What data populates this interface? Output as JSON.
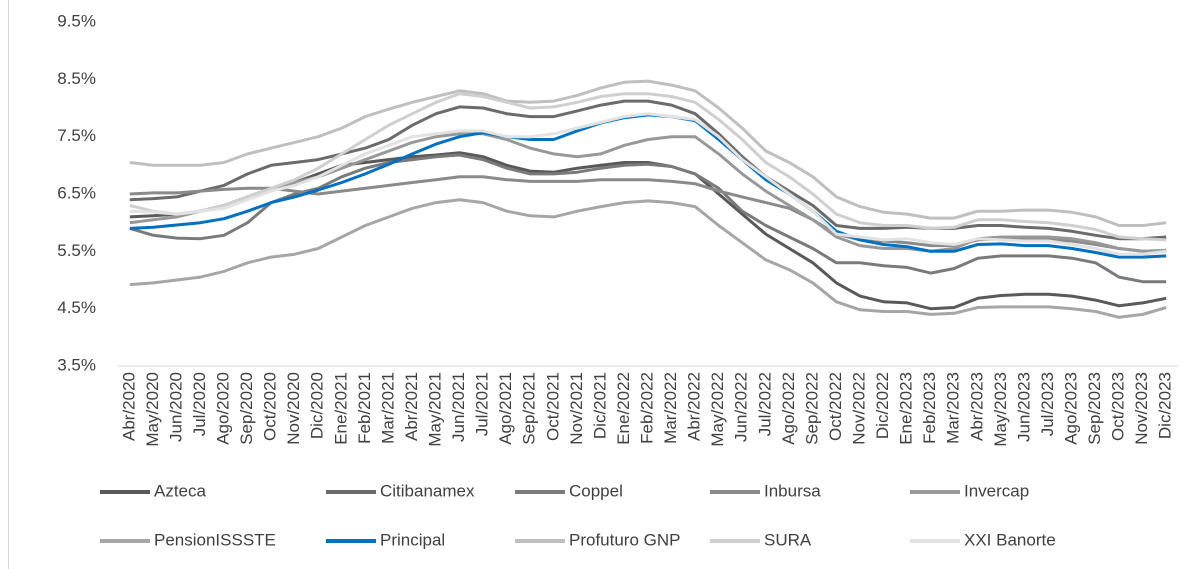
{
  "chart_data": {
    "type": "line",
    "categories": [
      "Abr/2020",
      "May/2020",
      "Jun/2020",
      "Jul/2020",
      "Ago/2020",
      "Sep/2020",
      "Oct/2020",
      "Nov/2020",
      "Dic/2020",
      "Ene/2021",
      "Feb/2021",
      "Mar/2021",
      "Abr/2021",
      "May/2021",
      "Jun/2021",
      "Jul/2021",
      "Ago/2021",
      "Sep/2021",
      "Oct/2021",
      "Nov/2021",
      "Dic/2021",
      "Ene/2022",
      "Feb/2022",
      "Mar/2022",
      "Abr/2022",
      "May/2022",
      "Jun/2022",
      "Jul/2022",
      "Ago/2022",
      "Sep/2022",
      "Oct/2022",
      "Nov/2022",
      "Dic/2022",
      "Ene/2023",
      "Feb/2023",
      "Mar/2023",
      "Abr/2023",
      "May/2023",
      "Jun/2023",
      "Jul/2023",
      "Ago/2023",
      "Sep/2023",
      "Oct/2023",
      "Nov/2023",
      "Dic/2023"
    ],
    "ylim": [
      3.5,
      9.5
    ],
    "yticks": [
      {
        "value": 3.5,
        "label": "3.5%"
      },
      {
        "value": 4.5,
        "label": "4.5%"
      },
      {
        "value": 5.5,
        "label": "5.5%"
      },
      {
        "value": 6.5,
        "label": "6.5%"
      },
      {
        "value": 7.5,
        "label": "7.5%"
      },
      {
        "value": 8.5,
        "label": "8.5%"
      },
      {
        "value": 9.5,
        "label": "9.5%"
      }
    ],
    "series": [
      {
        "name": "Azteca",
        "color": "#595959",
        "values": [
          6.1,
          6.12,
          6.15,
          6.2,
          6.3,
          6.45,
          6.6,
          6.7,
          6.85,
          7.0,
          7.05,
          7.1,
          7.15,
          7.18,
          7.22,
          7.15,
          7.0,
          6.9,
          6.88,
          6.95,
          7.0,
          7.05,
          7.05,
          6.98,
          6.85,
          6.5,
          6.15,
          5.8,
          5.55,
          5.3,
          4.95,
          4.72,
          4.62,
          4.6,
          4.5,
          4.52,
          4.68,
          4.73,
          4.75,
          4.75,
          4.72,
          4.65,
          4.55,
          4.6,
          4.68
        ]
      },
      {
        "name": "Citibanamex",
        "color": "#6b6b6b",
        "values": [
          6.4,
          6.42,
          6.45,
          6.55,
          6.65,
          6.85,
          7.0,
          7.05,
          7.1,
          7.2,
          7.3,
          7.45,
          7.7,
          7.9,
          8.02,
          8.0,
          7.9,
          7.85,
          7.85,
          7.95,
          8.05,
          8.12,
          8.12,
          8.05,
          7.9,
          7.55,
          7.15,
          6.8,
          6.55,
          6.3,
          5.95,
          5.9,
          5.9,
          5.92,
          5.9,
          5.9,
          5.95,
          5.95,
          5.92,
          5.9,
          5.85,
          5.78,
          5.72,
          5.72,
          5.75
        ]
      },
      {
        "name": "Coppel",
        "color": "#7a7a7a",
        "values": [
          5.9,
          5.78,
          5.73,
          5.72,
          5.78,
          6.0,
          6.35,
          6.5,
          6.6,
          6.8,
          6.95,
          7.05,
          7.1,
          7.15,
          7.18,
          7.1,
          6.95,
          6.85,
          6.85,
          6.88,
          6.95,
          7.0,
          7.02,
          6.98,
          6.85,
          6.6,
          6.2,
          5.95,
          5.75,
          5.55,
          5.3,
          5.3,
          5.25,
          5.22,
          5.12,
          5.2,
          5.38,
          5.42,
          5.42,
          5.42,
          5.38,
          5.3,
          5.05,
          4.97,
          4.97
        ]
      },
      {
        "name": "Inbursa",
        "color": "#8a8a8a",
        "values": [
          6.5,
          6.52,
          6.52,
          6.55,
          6.58,
          6.6,
          6.6,
          6.55,
          6.5,
          6.55,
          6.6,
          6.65,
          6.7,
          6.75,
          6.8,
          6.8,
          6.75,
          6.72,
          6.72,
          6.72,
          6.75,
          6.75,
          6.75,
          6.72,
          6.68,
          6.55,
          6.45,
          6.35,
          6.25,
          6.05,
          5.8,
          5.7,
          5.68,
          5.65,
          5.6,
          5.6,
          5.7,
          5.72,
          5.72,
          5.7,
          5.68,
          5.62,
          5.55,
          5.5,
          5.5
        ]
      },
      {
        "name": "Invercap",
        "color": "#989898",
        "values": [
          6.0,
          6.05,
          6.1,
          6.2,
          6.3,
          6.45,
          6.6,
          6.7,
          6.8,
          6.95,
          7.1,
          7.25,
          7.4,
          7.5,
          7.55,
          7.55,
          7.45,
          7.3,
          7.2,
          7.15,
          7.2,
          7.35,
          7.45,
          7.5,
          7.5,
          7.2,
          6.85,
          6.55,
          6.3,
          6.05,
          5.75,
          5.6,
          5.55,
          5.55,
          5.5,
          5.55,
          5.72,
          5.75,
          5.75,
          5.75,
          5.72,
          5.65,
          5.55,
          5.5,
          5.52
        ]
      },
      {
        "name": "PensionISSSTE",
        "color": "#a6a6a6",
        "values": [
          4.92,
          4.95,
          5.0,
          5.05,
          5.15,
          5.3,
          5.4,
          5.45,
          5.55,
          5.75,
          5.95,
          6.1,
          6.25,
          6.35,
          6.4,
          6.35,
          6.2,
          6.12,
          6.1,
          6.2,
          6.28,
          6.35,
          6.38,
          6.35,
          6.28,
          5.95,
          5.65,
          5.35,
          5.18,
          4.95,
          4.62,
          4.48,
          4.45,
          4.45,
          4.4,
          4.42,
          4.52,
          4.53,
          4.53,
          4.53,
          4.5,
          4.45,
          4.35,
          4.4,
          4.52
        ]
      },
      {
        "name": "Principal",
        "color": "#0070c0",
        "values": [
          5.9,
          5.92,
          5.96,
          6.0,
          6.07,
          6.2,
          6.35,
          6.45,
          6.57,
          6.7,
          6.85,
          7.02,
          7.2,
          7.37,
          7.5,
          7.57,
          7.5,
          7.45,
          7.45,
          7.6,
          7.74,
          7.83,
          7.88,
          7.85,
          7.78,
          7.45,
          7.1,
          6.75,
          6.5,
          6.2,
          5.85,
          5.7,
          5.62,
          5.58,
          5.5,
          5.5,
          5.62,
          5.63,
          5.6,
          5.6,
          5.55,
          5.48,
          5.4,
          5.4,
          5.42
        ]
      },
      {
        "name": "Profuturo GNP",
        "color": "#bfbfbf",
        "values": [
          7.05,
          7.0,
          7.0,
          7.0,
          7.05,
          7.2,
          7.3,
          7.4,
          7.5,
          7.65,
          7.85,
          7.98,
          8.1,
          8.2,
          8.3,
          8.25,
          8.12,
          8.1,
          8.12,
          8.22,
          8.35,
          8.45,
          8.47,
          8.4,
          8.3,
          8.0,
          7.65,
          7.25,
          7.05,
          6.8,
          6.45,
          6.28,
          6.18,
          6.15,
          6.08,
          6.08,
          6.2,
          6.2,
          6.22,
          6.22,
          6.18,
          6.1,
          5.95,
          5.95,
          6.0
        ]
      },
      {
        "name": "SURA",
        "color": "#cfcfcf",
        "values": [
          6.3,
          6.2,
          6.15,
          6.2,
          6.3,
          6.45,
          6.6,
          6.75,
          6.95,
          7.2,
          7.45,
          7.7,
          7.9,
          8.1,
          8.25,
          8.2,
          8.1,
          8.0,
          8.02,
          8.1,
          8.2,
          8.25,
          8.25,
          8.2,
          8.1,
          7.8,
          7.45,
          7.05,
          6.8,
          6.5,
          6.15,
          6.0,
          5.95,
          5.95,
          5.9,
          5.92,
          6.05,
          6.05,
          6.02,
          6.0,
          5.95,
          5.88,
          5.75,
          5.72,
          5.7
        ]
      },
      {
        "name": "XXI Banorte",
        "color": "#e2e2e2",
        "values": [
          6.2,
          6.18,
          6.15,
          6.2,
          6.25,
          6.4,
          6.55,
          6.65,
          6.8,
          7.0,
          7.2,
          7.35,
          7.5,
          7.55,
          7.6,
          7.6,
          7.5,
          7.5,
          7.55,
          7.65,
          7.75,
          7.85,
          7.9,
          7.85,
          7.8,
          7.5,
          7.1,
          6.8,
          6.5,
          6.2,
          5.8,
          5.75,
          5.7,
          5.72,
          5.65,
          5.62,
          5.72,
          5.7,
          5.68,
          5.68,
          5.62,
          5.55,
          5.45,
          5.45,
          5.5
        ]
      }
    ]
  }
}
